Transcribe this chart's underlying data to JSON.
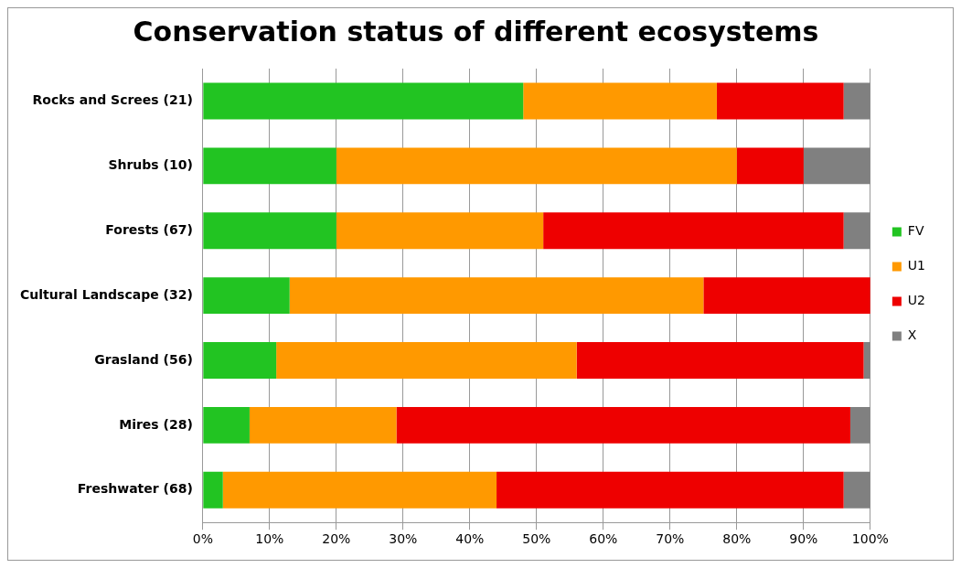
{
  "chart_data": {
    "type": "bar",
    "orientation": "horizontal",
    "stacked": true,
    "title": "Conservation status of different ecosystems",
    "categories": [
      "Rocks and Screes (21)",
      "Shrubs (10)",
      "Forests (67)",
      "Cultural Landscape (32)",
      "Grasland (56)",
      "Mires (28)",
      "Freshwater (68)"
    ],
    "series": [
      {
        "name": "FV",
        "color": "#22c422",
        "values": [
          48,
          20,
          20,
          13,
          11,
          7,
          3
        ]
      },
      {
        "name": "U1",
        "color": "#ff9900",
        "values": [
          29,
          60,
          31,
          62,
          45,
          22,
          41
        ]
      },
      {
        "name": "U2",
        "color": "#ee0000",
        "values": [
          19,
          10,
          45,
          25,
          43,
          68,
          52
        ]
      },
      {
        "name": "X",
        "color": "#808080",
        "values": [
          4,
          10,
          4,
          0,
          1,
          3,
          4
        ]
      }
    ],
    "xlim": [
      0,
      100
    ],
    "xticks": [
      {
        "value": 0,
        "label": "0%"
      },
      {
        "value": 10,
        "label": "10%"
      },
      {
        "value": 20,
        "label": "20%"
      },
      {
        "value": 30,
        "label": "30%"
      },
      {
        "value": 40,
        "label": "40%"
      },
      {
        "value": 50,
        "label": "50%"
      },
      {
        "value": 60,
        "label": "60%"
      },
      {
        "value": 70,
        "label": "70%"
      },
      {
        "value": 80,
        "label": "80%"
      },
      {
        "value": 90,
        "label": "90%"
      },
      {
        "value": 100,
        "label": "100%"
      }
    ],
    "grid": "x",
    "legend": "right"
  }
}
